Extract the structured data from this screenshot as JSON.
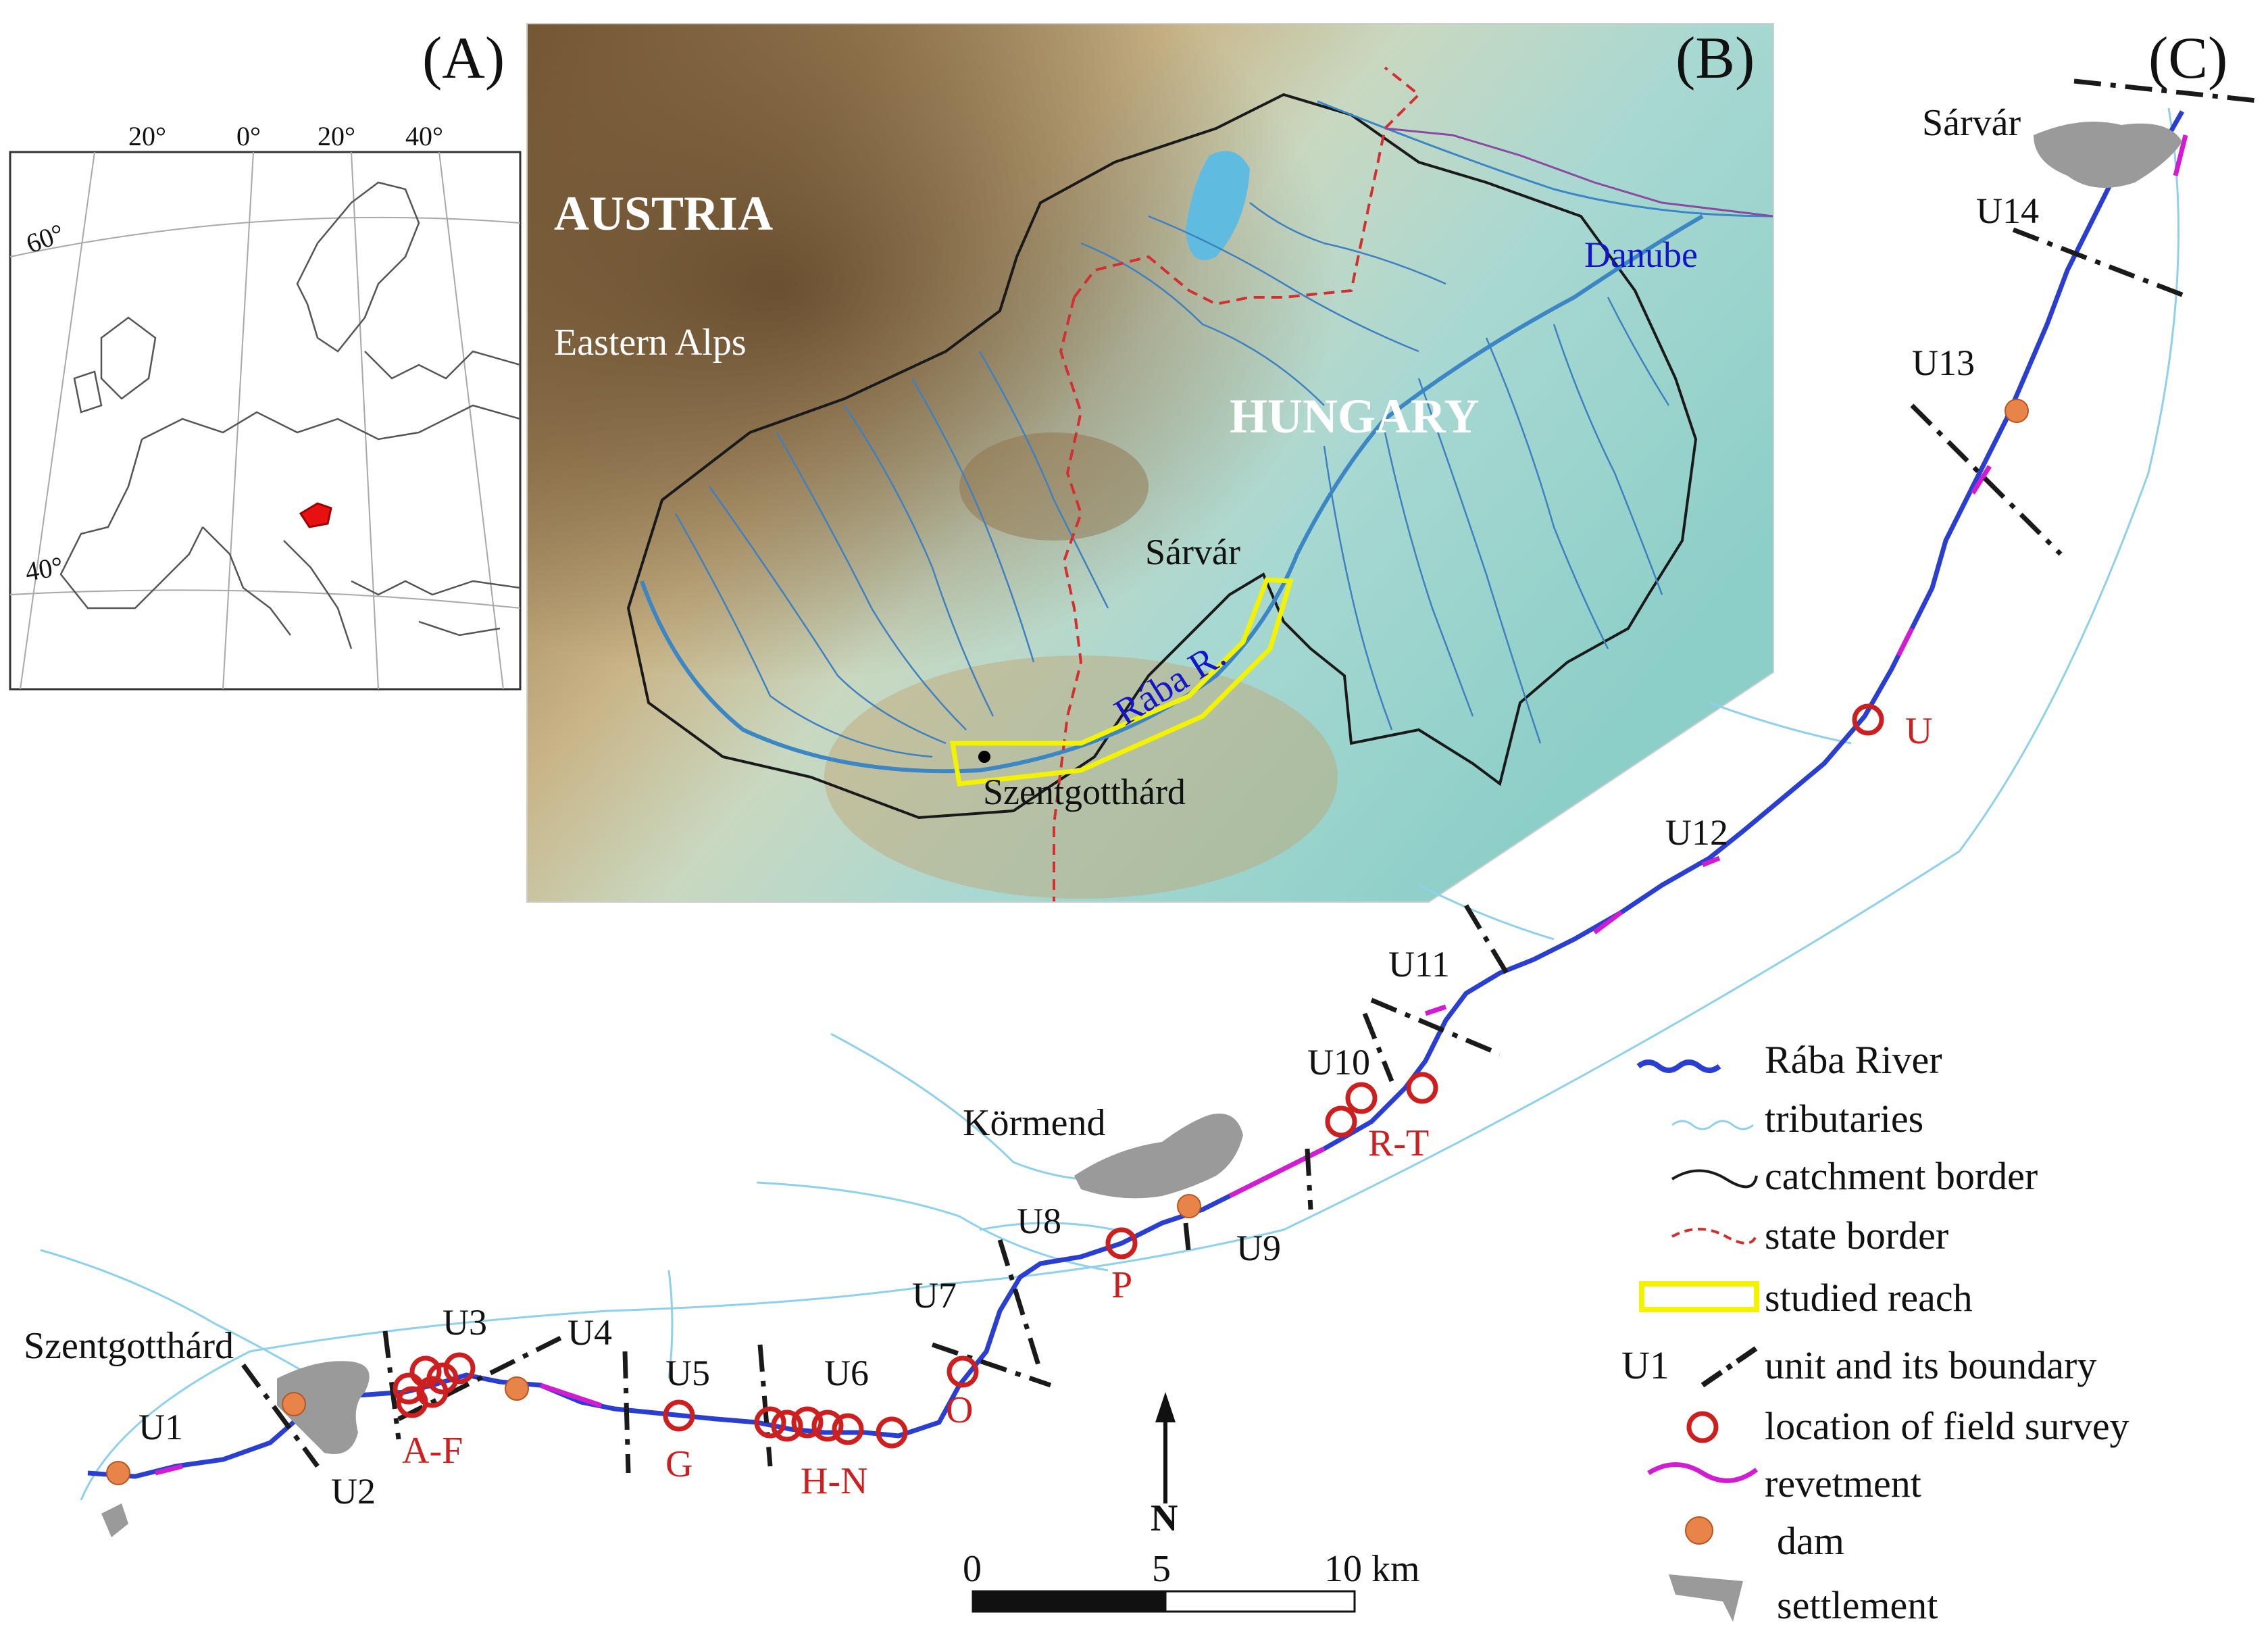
{
  "panels": {
    "a": "(A)",
    "b": "(B)",
    "c": "(C)"
  },
  "panel_a": {
    "lon_labels": [
      "20°",
      "0°",
      "20°",
      "40°"
    ],
    "lat_labels": [
      "60°",
      "40°"
    ]
  },
  "panel_b": {
    "countries": {
      "austria": "AUSTRIA",
      "hungary": "HUNGARY"
    },
    "regions": {
      "alps": "Eastern Alps"
    },
    "rivers": {
      "danube": "Danube",
      "raba": "Rába R."
    },
    "towns": {
      "sarvar": "Sárvár",
      "szentgotthard": "Szentgotthárd"
    }
  },
  "panel_c": {
    "towns": {
      "sarvar": "Sárvár",
      "kormend": "Körmend",
      "szentgotthard": "Szentgotthárd"
    },
    "units": [
      "U1",
      "U2",
      "U3",
      "U4",
      "U5",
      "U6",
      "U7",
      "U8",
      "U9",
      "U10",
      "U11",
      "U12",
      "U13",
      "U14"
    ],
    "survey_sites": [
      "A-F",
      "G",
      "H-N",
      "O",
      "P",
      "R-T",
      "U"
    ],
    "north": "N",
    "scale": {
      "s0": "0",
      "s5": "5",
      "s10": "10 km"
    }
  },
  "legend": {
    "river": "Rába River",
    "tributaries": "tributaries",
    "catchment": "catchment border",
    "state": "state border",
    "reach": "studied reach",
    "unit_label": "U1",
    "unit": "unit and its boundary",
    "survey": "location of field survey",
    "revetment": "revetment",
    "dam": "dam",
    "settlement": "settlement"
  },
  "colors": {
    "river": "#2a3fd0",
    "tributary": "#8fd0ea",
    "catchment": "#1a1a1a",
    "state_border": "#d23030",
    "studied_reach": "#f3f300",
    "revetment": "#d21cd2",
    "dam": "#e8844a",
    "survey": "#cc1f1f",
    "settlement": "#9a9a9a",
    "label_red": "#cc1f1f",
    "label_blue": "#1515c8"
  }
}
